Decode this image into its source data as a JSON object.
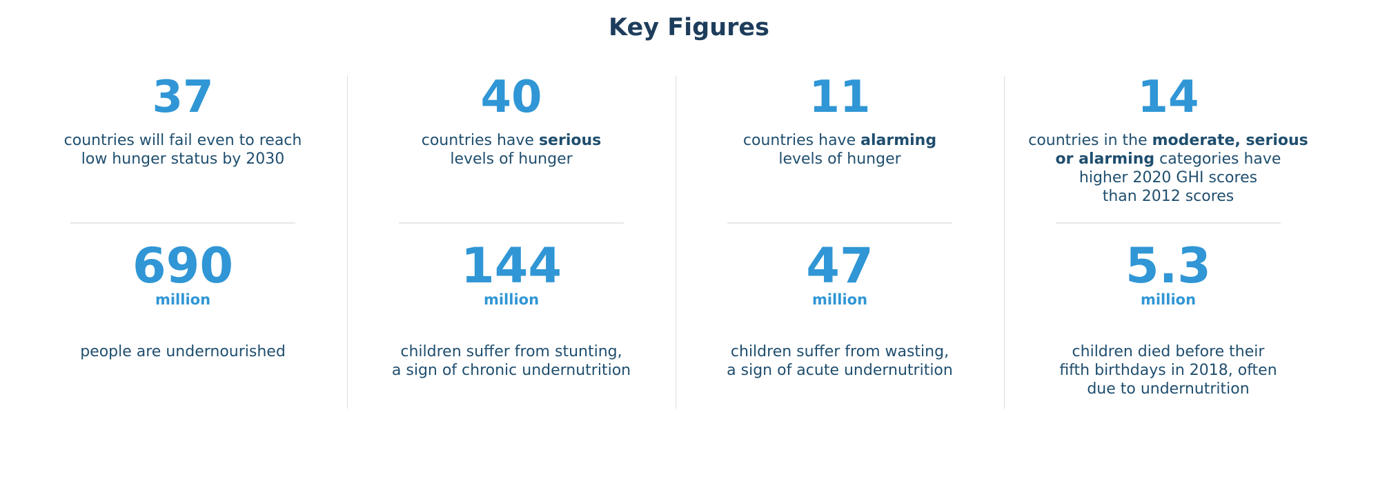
{
  "title": "Key Figures",
  "accent_color": "#3096d5",
  "text_color": "#1f4e6e",
  "title_color": "#1e3d5c",
  "columns": [
    {
      "top": {
        "value": "37",
        "caption": "countries will fail even to reach\nlow hunger status by 2030",
        "bold_terms": []
      },
      "bottom": {
        "value": "690",
        "unit": "million",
        "caption": "people are undernourished",
        "bold_terms": []
      }
    },
    {
      "top": {
        "value": "40",
        "caption": "countries have serious\nlevels of hunger",
        "bold_terms": [
          "serious"
        ]
      },
      "bottom": {
        "value": "144",
        "unit": "million",
        "caption": "children suffer from stunting,\na sign of chronic undernutrition",
        "bold_terms": []
      }
    },
    {
      "top": {
        "value": "11",
        "caption": "countries have alarming\nlevels of hunger",
        "bold_terms": [
          "alarming"
        ]
      },
      "bottom": {
        "value": "47",
        "unit": "million",
        "caption": "children suffer from wasting,\na sign of acute undernutrition",
        "bold_terms": []
      }
    },
    {
      "top": {
        "value": "14",
        "caption": "countries in the moderate, serious\nor alarming categories have\nhigher 2020 GHI scores\nthan 2012 scores",
        "bold_terms": [
          "moderate, serious",
          "or alarming"
        ]
      },
      "bottom": {
        "value": "5.3",
        "unit": "million",
        "caption": "children died before their\nfifth birthdays in 2018, often\ndue to undernutrition",
        "bold_terms": []
      }
    }
  ],
  "chart_data": {
    "type": "table",
    "title": "Key Figures",
    "figures": [
      {
        "value": 37,
        "unit": "countries",
        "label": "countries will fail even to reach low hunger status by 2030"
      },
      {
        "value": 40,
        "unit": "countries",
        "label": "countries have serious levels of hunger"
      },
      {
        "value": 11,
        "unit": "countries",
        "label": "countries have alarming levels of hunger"
      },
      {
        "value": 14,
        "unit": "countries",
        "label": "countries in the moderate, serious or alarming categories have higher 2020 GHI scores than 2012 scores"
      },
      {
        "value": 690,
        "unit": "million",
        "label": "people are undernourished"
      },
      {
        "value": 144,
        "unit": "million",
        "label": "children suffer from stunting, a sign of chronic undernutrition"
      },
      {
        "value": 47,
        "unit": "million",
        "label": "children suffer from wasting, a sign of acute undernutrition"
      },
      {
        "value": 5.3,
        "unit": "million",
        "label": "children died before their fifth birthdays in 2018, often due to undernutrition"
      }
    ]
  }
}
